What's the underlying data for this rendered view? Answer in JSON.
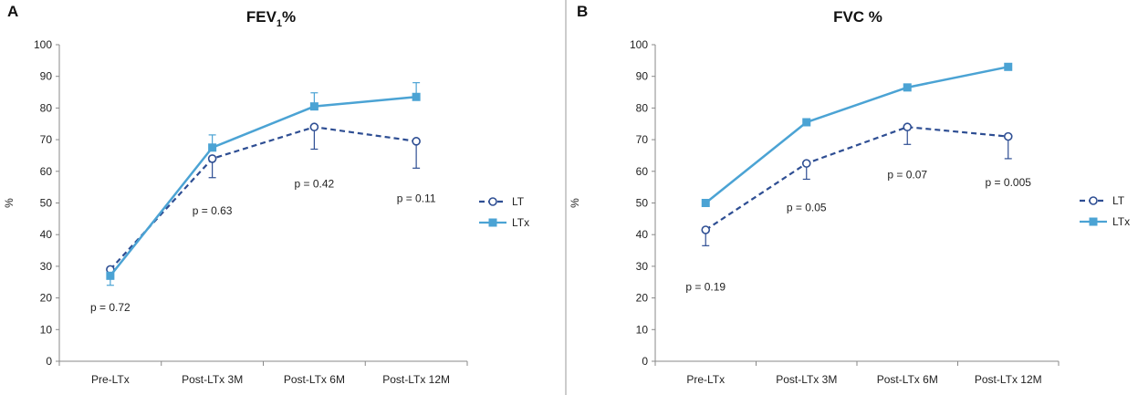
{
  "chart_data": [
    {
      "panel_letter": "A",
      "type": "line",
      "title": {
        "text": "FEV",
        "subscript": "1",
        "suffix": "%"
      },
      "ylabel": "%",
      "xlabel": "",
      "ylim": [
        0,
        100
      ],
      "y_ticks": [
        0,
        10,
        20,
        30,
        40,
        50,
        60,
        70,
        80,
        90,
        100
      ],
      "categories": [
        "Pre-LTx",
        "Post-LTx 3M",
        "Post-LTx 6M",
        "Post-LTx 12M"
      ],
      "legend_position": "right",
      "series": [
        {
          "name": "LT",
          "style": "dashed",
          "marker": "open-circle",
          "color": "#2e4e93",
          "values": [
            29,
            64,
            74,
            69.5
          ],
          "error_lower": [
            null,
            6,
            7,
            8.5
          ],
          "error_upper": [
            null,
            null,
            null,
            null
          ]
        },
        {
          "name": "LTx",
          "style": "solid",
          "marker": "filled-square",
          "color": "#4ba3d4",
          "values": [
            27,
            67.5,
            80.5,
            83.5
          ],
          "error_lower": [
            3,
            null,
            null,
            null
          ],
          "error_upper": [
            null,
            4,
            4.3,
            4.5
          ]
        }
      ],
      "annotations": [
        {
          "text": "p = 0.72",
          "category_index": 0,
          "y": 17
        },
        {
          "text": "p = 0.63",
          "category_index": 1,
          "y": 47.5
        },
        {
          "text": "p = 0.42",
          "category_index": 2,
          "y": 56
        },
        {
          "text": "p = 0.11",
          "category_index": 3,
          "y": 51.5
        }
      ]
    },
    {
      "panel_letter": "B",
      "type": "line",
      "title": {
        "text": "FVC %",
        "subscript": "",
        "suffix": ""
      },
      "ylabel": "%",
      "xlabel": "",
      "ylim": [
        0,
        100
      ],
      "y_ticks": [
        0,
        10,
        20,
        30,
        40,
        50,
        60,
        70,
        80,
        90,
        100
      ],
      "categories": [
        "Pre-LTx",
        "Post-LTx 3M",
        "Post-LTx 6M",
        "Post-LTx 12M"
      ],
      "legend_position": "right",
      "series": [
        {
          "name": "LT",
          "style": "dashed",
          "marker": "open-circle",
          "color": "#2e4e93",
          "values": [
            41.5,
            62.5,
            74,
            71
          ],
          "error_lower": [
            5,
            5,
            5.5,
            7
          ],
          "error_upper": [
            null,
            null,
            null,
            null
          ]
        },
        {
          "name": "LTx",
          "style": "solid",
          "marker": "filled-square",
          "color": "#4ba3d4",
          "values": [
            50,
            75.5,
            86.5,
            93
          ],
          "error_lower": [
            null,
            null,
            null,
            null
          ],
          "error_upper": [
            null,
            null,
            null,
            null
          ]
        }
      ],
      "annotations": [
        {
          "text": "p = 0.19",
          "category_index": 0,
          "y": 23.5
        },
        {
          "text": "p = 0.05",
          "category_index": 1,
          "y": 48.5
        },
        {
          "text": "p = 0.07",
          "category_index": 2,
          "y": 59
        },
        {
          "text": "p = 0.005",
          "category_index": 3,
          "y": 56.5
        }
      ]
    }
  ]
}
